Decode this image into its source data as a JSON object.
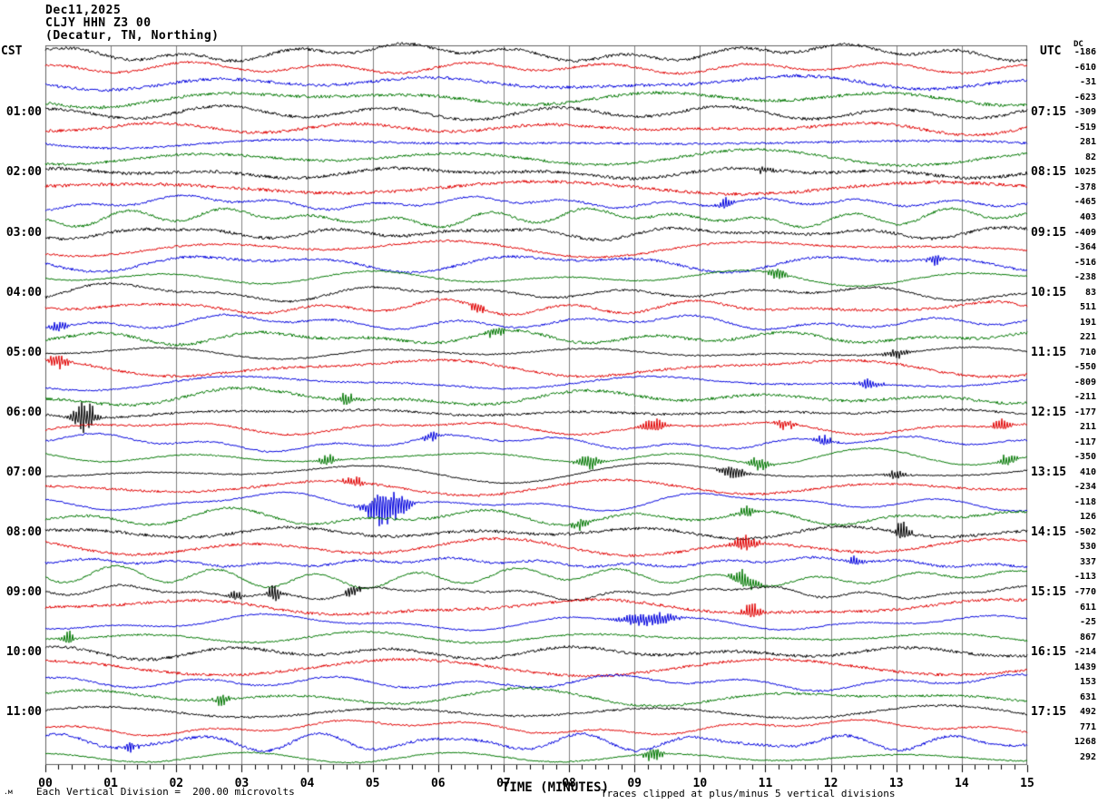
{
  "header": {
    "date": "Dec11,2025",
    "station": "CLJY HHN Z3 00",
    "location": "(Decatur, TN, Northing)"
  },
  "axes": {
    "left_label": "CST",
    "right_label": "UTC",
    "dc_label": "DC",
    "x_title": "TIME (MINUTES)",
    "x_ticks": [
      "00",
      "01",
      "02",
      "03",
      "04",
      "05",
      "06",
      "07",
      "08",
      "09",
      "10",
      "11",
      "12",
      "13",
      "14",
      "15"
    ],
    "left_times": [
      "01:00",
      "02:00",
      "03:00",
      "04:00",
      "05:00",
      "06:00",
      "07:00",
      "08:00",
      "09:00",
      "10:00",
      "11:00"
    ],
    "right_times": [
      "07:15",
      "08:15",
      "09:15",
      "10:15",
      "11:15",
      "12:15",
      "13:15",
      "14:15",
      "15:15",
      "16:15",
      "17:15"
    ]
  },
  "footer": {
    "left": "Each Vertical Division =  200.00 microvolts",
    "right": "Traces clipped at plus/minus 5 vertical divisions",
    "watermark": ".м"
  },
  "chart_data": {
    "type": "line",
    "kind": "helicorder-seismogram",
    "title": "CLJY HHN Z3 00 (Decatur, TN, Northing) Dec11,2025",
    "xlabel": "TIME (MINUTES)",
    "x_range": [
      0,
      15
    ],
    "minutes_per_line": 15,
    "lines_per_hour": 4,
    "rows": 48,
    "start_time_cst": "00:00",
    "utc_offset_hours": 6,
    "trace_colors": [
      "#000000",
      "#e00000",
      "#0000dd",
      "#007700"
    ],
    "grid_color": "#808080",
    "frame_color": "#606060",
    "tick_color": "#000000",
    "grid_every_minutes": 1,
    "minor_ticks_per_minute": 5,
    "vertical_division_microvolts": 200.0,
    "clip_divisions": 5,
    "dc_offsets": [
      -186,
      -610,
      -31,
      -623,
      -309,
      -519,
      281,
      82,
      1025,
      -378,
      -465,
      403,
      -409,
      -364,
      -516,
      -238,
      83,
      511,
      191,
      221,
      710,
      -550,
      -809,
      -211,
      -177,
      211,
      -117,
      -350,
      410,
      -234,
      -118,
      126,
      -502,
      530,
      337,
      -113,
      -770,
      611,
      -25,
      867,
      -214,
      1439,
      153,
      631,
      492,
      771,
      1268,
      292
    ],
    "events": [
      {
        "row": 8,
        "minute": 11.0,
        "amp": 6,
        "w": 0.1
      },
      {
        "row": 10,
        "minute": 10.4,
        "amp": 9,
        "w": 0.08
      },
      {
        "row": 14,
        "minute": 13.6,
        "amp": 10,
        "w": 0.08
      },
      {
        "row": 15,
        "minute": 11.2,
        "amp": 9,
        "w": 0.1
      },
      {
        "row": 17,
        "minute": 6.6,
        "amp": 8,
        "w": 0.08
      },
      {
        "row": 18,
        "minute": 0.2,
        "amp": 9,
        "w": 0.1
      },
      {
        "row": 19,
        "minute": 6.9,
        "amp": 8,
        "w": 0.1
      },
      {
        "row": 20,
        "minute": 13.0,
        "amp": 7,
        "w": 0.15
      },
      {
        "row": 21,
        "minute": 0.2,
        "amp": 10,
        "w": 0.1
      },
      {
        "row": 22,
        "minute": 12.6,
        "amp": 8,
        "w": 0.12
      },
      {
        "row": 23,
        "minute": 4.6,
        "amp": 8,
        "w": 0.1
      },
      {
        "row": 24,
        "minute": 0.6,
        "amp": 22,
        "w": 0.12
      },
      {
        "row": 25,
        "minute": 9.3,
        "amp": 11,
        "w": 0.12
      },
      {
        "row": 25,
        "minute": 11.3,
        "amp": 8,
        "w": 0.1
      },
      {
        "row": 25,
        "minute": 14.6,
        "amp": 9,
        "w": 0.1
      },
      {
        "row": 26,
        "minute": 5.9,
        "amp": 8,
        "w": 0.08
      },
      {
        "row": 26,
        "minute": 11.9,
        "amp": 8,
        "w": 0.1
      },
      {
        "row": 27,
        "minute": 4.3,
        "amp": 9,
        "w": 0.1
      },
      {
        "row": 27,
        "minute": 8.3,
        "amp": 10,
        "w": 0.12
      },
      {
        "row": 27,
        "minute": 10.9,
        "amp": 9,
        "w": 0.12
      },
      {
        "row": 27,
        "minute": 14.7,
        "amp": 9,
        "w": 0.1
      },
      {
        "row": 28,
        "minute": 10.5,
        "amp": 9,
        "w": 0.15
      },
      {
        "row": 28,
        "minute": 13.0,
        "amp": 7,
        "w": 0.1
      },
      {
        "row": 29,
        "minute": 4.7,
        "amp": 8,
        "w": 0.12
      },
      {
        "row": 30,
        "minute": 5.2,
        "amp": 30,
        "w": 0.2
      },
      {
        "row": 31,
        "minute": 8.2,
        "amp": 8,
        "w": 0.1
      },
      {
        "row": 31,
        "minute": 10.7,
        "amp": 9,
        "w": 0.1
      },
      {
        "row": 32,
        "minute": 13.1,
        "amp": 15,
        "w": 0.08
      },
      {
        "row": 33,
        "minute": 10.7,
        "amp": 11,
        "w": 0.15
      },
      {
        "row": 34,
        "minute": 12.4,
        "amp": 8,
        "w": 0.08
      },
      {
        "row": 35,
        "minute": 10.7,
        "amp": 13,
        "w": 0.15
      },
      {
        "row": 36,
        "minute": 2.9,
        "amp": 7,
        "w": 0.08
      },
      {
        "row": 36,
        "minute": 3.5,
        "amp": 13,
        "w": 0.08
      },
      {
        "row": 36,
        "minute": 4.7,
        "amp": 8,
        "w": 0.08
      },
      {
        "row": 37,
        "minute": 10.8,
        "amp": 10,
        "w": 0.12
      },
      {
        "row": 38,
        "minute": 9.2,
        "amp": 10,
        "w": 0.3
      },
      {
        "row": 39,
        "minute": 0.35,
        "amp": 11,
        "w": 0.06
      },
      {
        "row": 43,
        "minute": 2.7,
        "amp": 9,
        "w": 0.08
      },
      {
        "row": 46,
        "minute": 1.3,
        "amp": 8,
        "w": 0.08
      },
      {
        "row": 47,
        "minute": 9.3,
        "amp": 11,
        "w": 0.1
      }
    ]
  }
}
